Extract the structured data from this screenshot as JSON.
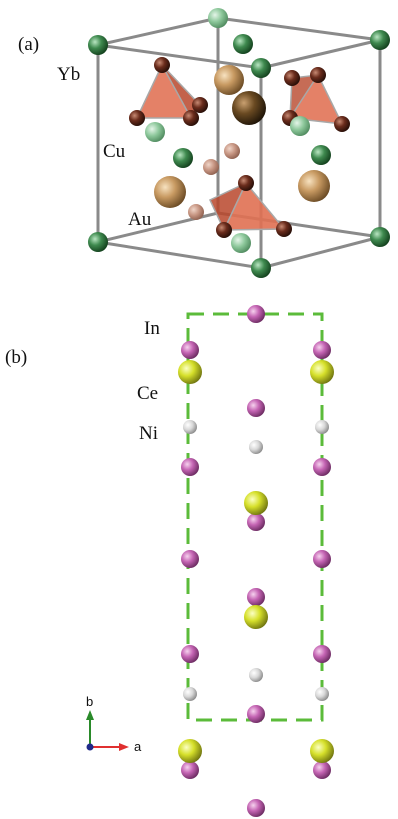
{
  "panel_a": {
    "label": "(a)",
    "atoms": {
      "yb": "Yb",
      "cu": "Cu",
      "au": "Au"
    }
  },
  "panel_b": {
    "label": "(b)",
    "atoms": {
      "in": "In",
      "ce": "Ce",
      "ni": "Ni"
    },
    "axes": {
      "b": "b",
      "a": "a"
    }
  },
  "colors": {
    "yb": "#3f8a4f",
    "cu": "#5a2a1c",
    "au": "#c89a62",
    "in": "#c565b4",
    "ce": "#d6e02a",
    "ni": "#d8d8d8",
    "cell_b": "#5bbb3a",
    "polyhedron": "#d96a47",
    "axis_b": "#2a8a2a",
    "axis_a": "#e03030"
  }
}
